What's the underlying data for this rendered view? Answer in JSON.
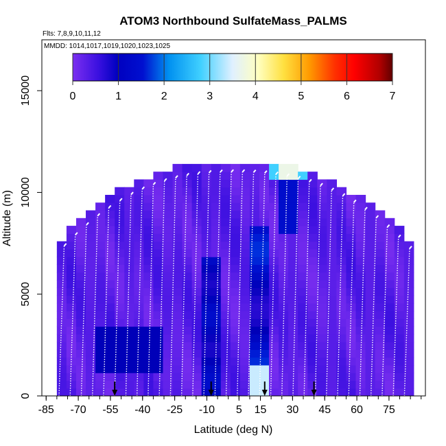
{
  "chart_data": {
    "type": "heatmap",
    "title": "ATOM3 Northbound SulfateMass_PALMS",
    "subtitle_flights": "Flts: 7,8,9,10,11,12",
    "subtitle_dates": "MMDD: 1014,1017,1019,1020,1023,1025",
    "xlabel": "Latitude (deg N)",
    "ylabel": "Altitude (m)",
    "xlim": [
      -87,
      92
    ],
    "ylim": [
      0,
      17500
    ],
    "x_ticks": [
      -85,
      -70,
      -55,
      -40,
      -25,
      -10,
      5,
      15,
      30,
      45,
      60,
      75
    ],
    "x_tick_labels": [
      "-85",
      "-70",
      "-55",
      "-40",
      "-25",
      "-10",
      "5",
      "15",
      "30",
      "45",
      "60",
      "75"
    ],
    "y_ticks": [
      0,
      5000,
      10000,
      15000
    ],
    "y_tick_labels": [
      "0",
      "5000",
      "10000",
      "15000"
    ],
    "colorbar": {
      "min": 0,
      "max": 7,
      "ticks": [
        0,
        1,
        2,
        3,
        4,
        5,
        6,
        7
      ],
      "tick_labels": [
        "0",
        "1",
        "2",
        "3",
        "4",
        "5",
        "6",
        "7"
      ]
    },
    "arrows_latitude": [
      -53,
      -8,
      17,
      40
    ],
    "colors": {
      "background": "#7B2FF0",
      "navy": "#0000B8"
    }
  }
}
